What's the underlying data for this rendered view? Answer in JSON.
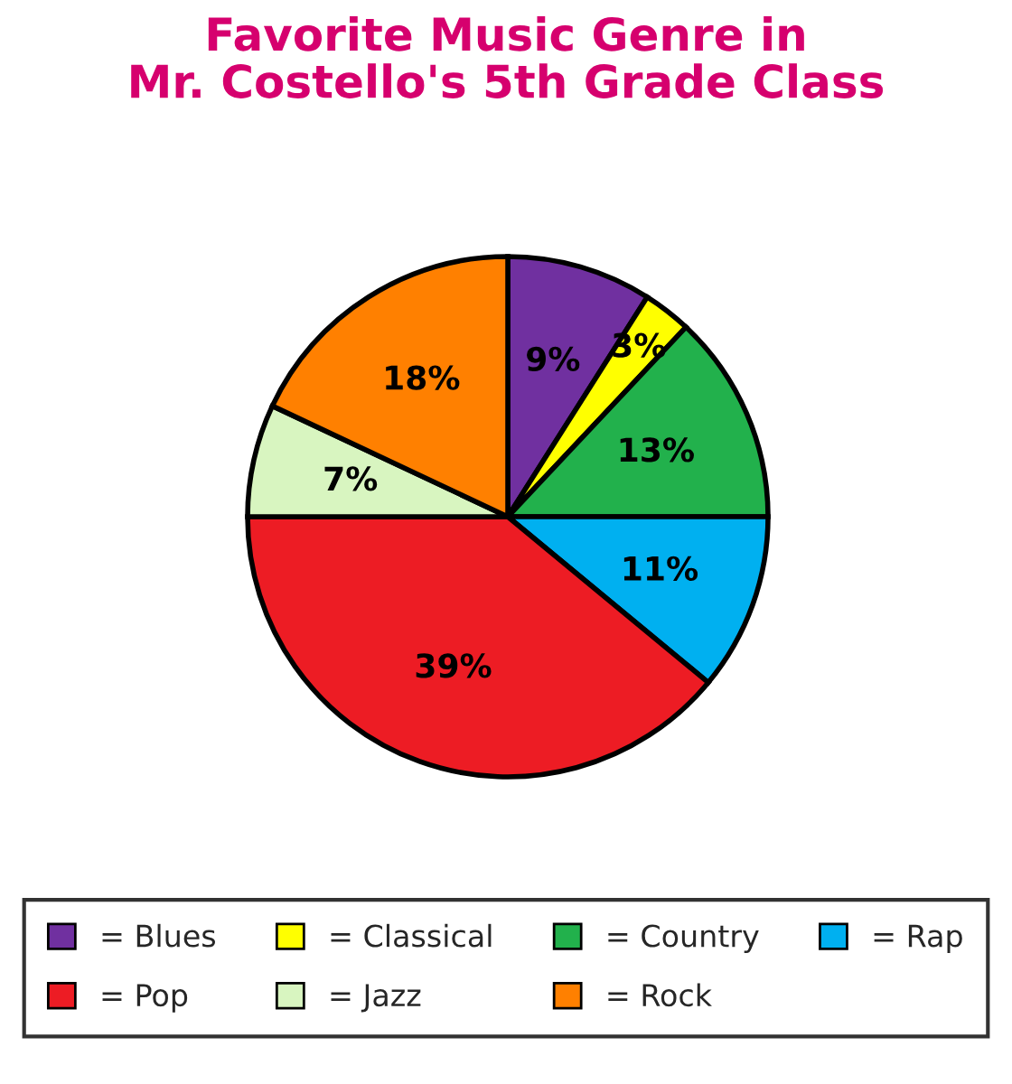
{
  "chart_data": {
    "type": "pie",
    "title": "Favorite Music Genre in\nMr. Costello's 5th Grade Class",
    "categories": [
      "= Blues",
      "= Classical",
      "= Country",
      "= Rap",
      "= Pop",
      "= Jazz",
      "= Rock"
    ],
    "values": [
      9,
      3,
      13,
      11,
      39,
      7,
      18
    ],
    "colors": [
      "#7030a0",
      "#ffff00",
      "#22b14c",
      "#00b0f0",
      "#ed1c24",
      "#d8f5c0",
      "#ff8000"
    ],
    "value_labels": [
      "9%",
      "3%",
      "13%",
      "11%",
      "39%",
      "7%",
      "18%"
    ],
    "legend": "bottom"
  }
}
